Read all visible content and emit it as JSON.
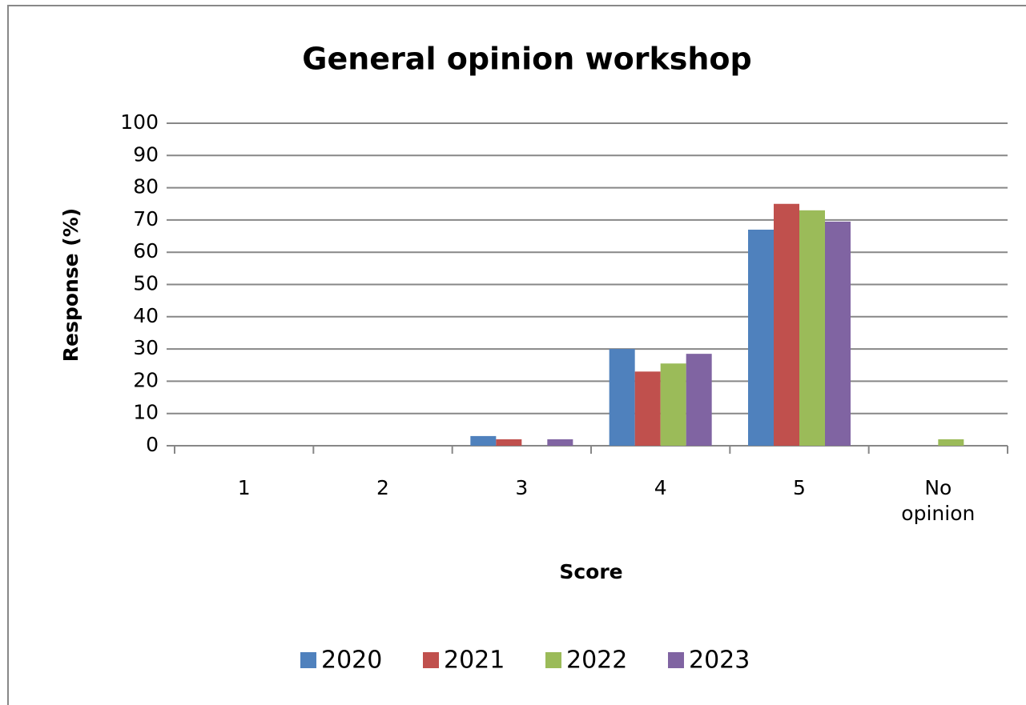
{
  "chart_data": {
    "type": "bar",
    "title": "General opinion workshop",
    "x_label": "Score",
    "y_label": "Response (%)",
    "categories": [
      "1",
      "2",
      "3",
      "4",
      "5",
      "No opinion"
    ],
    "series": [
      {
        "name": "2020",
        "color": "#4f81bd",
        "values": [
          0,
          0,
          3,
          30,
          67,
          0
        ]
      },
      {
        "name": "2021",
        "color": "#c0504d",
        "values": [
          0,
          0,
          2,
          23,
          75,
          0
        ]
      },
      {
        "name": "2022",
        "color": "#9bbb59",
        "values": [
          0,
          0,
          0,
          25.5,
          73,
          2
        ]
      },
      {
        "name": "2023",
        "color": "#8064a2",
        "values": [
          0,
          0,
          2,
          28.5,
          69.5,
          0
        ]
      }
    ],
    "ylim": [
      0,
      100
    ],
    "yticks": [
      0,
      10,
      20,
      30,
      40,
      50,
      60,
      70,
      80,
      90,
      100
    ],
    "grid": true,
    "legend": "bottom"
  }
}
